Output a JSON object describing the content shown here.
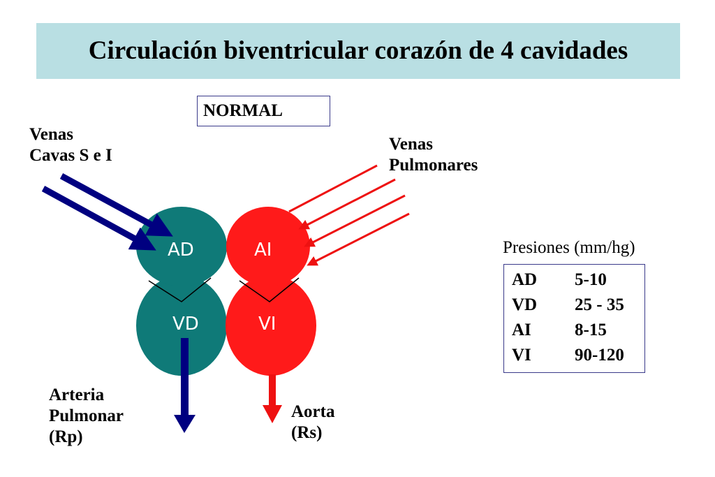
{
  "title": "Circulación biventricular corazón de 4 cavidades",
  "state_label": "NORMAL",
  "labels": {
    "venas_cavas": [
      "Venas",
      "Cavas S e I"
    ],
    "venas_pulmonares": [
      "Venas",
      "Pulmonares"
    ],
    "arteria_pulmonar": [
      "Arteria",
      "Pulmonar",
      "(Rp)"
    ],
    "aorta": [
      "Aorta",
      "(Rs)"
    ]
  },
  "chambers": {
    "AD": "AD",
    "AI": "AI",
    "VD": "VD",
    "VI": "VI"
  },
  "pressures": {
    "title": "Presiones (mm/hg)",
    "rows": [
      {
        "chamber": "AD",
        "value": "5-10"
      },
      {
        "chamber": "VD",
        "value": "25 - 35"
      },
      {
        "chamber": "AI",
        "value": "8-15"
      },
      {
        "chamber": "VI",
        "value": "90-120"
      }
    ]
  },
  "colors": {
    "right_heart": "#0f7a78",
    "left_heart": "#ff1a1a",
    "venous_arrow": "#000080",
    "arterial_arrow": "#ee1111",
    "title_bg": "#b9dfe3"
  }
}
